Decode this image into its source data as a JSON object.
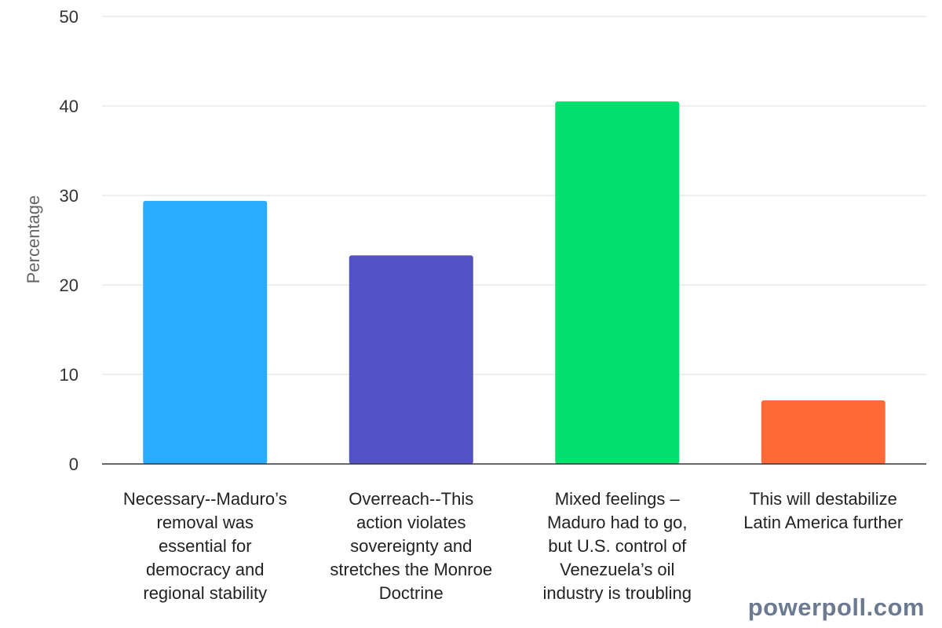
{
  "chart_data": {
    "type": "bar",
    "title": "",
    "xlabel": "",
    "ylabel": "Percentage",
    "ylim": [
      0,
      50
    ],
    "yticks": [
      0,
      10,
      20,
      30,
      40,
      50
    ],
    "grid": true,
    "legend": "none",
    "categories": [
      [
        "Necessary--Maduro’s",
        "removal was",
        "essential for",
        "democracy and",
        "regional stability"
      ],
      [
        "Overreach--This",
        "action violates",
        "sovereignty and",
        "stretches the Monroe",
        "Doctrine"
      ],
      [
        "Mixed feelings –",
        "Maduro had to go,",
        "but U.S. control of",
        "Venezuela’s oil",
        "industry is troubling"
      ],
      [
        "This will destabilize",
        "Latin America further"
      ]
    ],
    "values": [
      29.4,
      23.3,
      40.5,
      7.1
    ],
    "colors": [
      "#29abff",
      "#5351c6",
      "#02e16e",
      "#ff6a36"
    ]
  },
  "watermark": "powerpoll.com"
}
